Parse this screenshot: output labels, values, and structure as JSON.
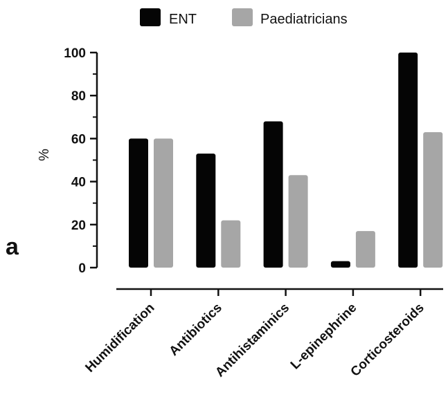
{
  "panel_label": "a",
  "colors": {
    "ENT": "#050505",
    "Paediatricians": "#a6a6a6",
    "axis": "#111111"
  },
  "chart_data": {
    "type": "bar",
    "categories": [
      "Humidification",
      "Antibiotics",
      "Antihistaminics",
      "L-epinephrine",
      "Corticosteroids"
    ],
    "series": [
      {
        "name": "ENT",
        "values": [
          60,
          53,
          68,
          3,
          100
        ]
      },
      {
        "name": "Paediatricians",
        "values": [
          60,
          22,
          43,
          17,
          63
        ]
      }
    ],
    "title": "",
    "xlabel": "",
    "ylabel": "%",
    "ylim": [
      0,
      100
    ],
    "yticks": [
      0,
      20,
      40,
      60,
      80,
      100
    ],
    "grid": false,
    "legend": "top-center"
  }
}
